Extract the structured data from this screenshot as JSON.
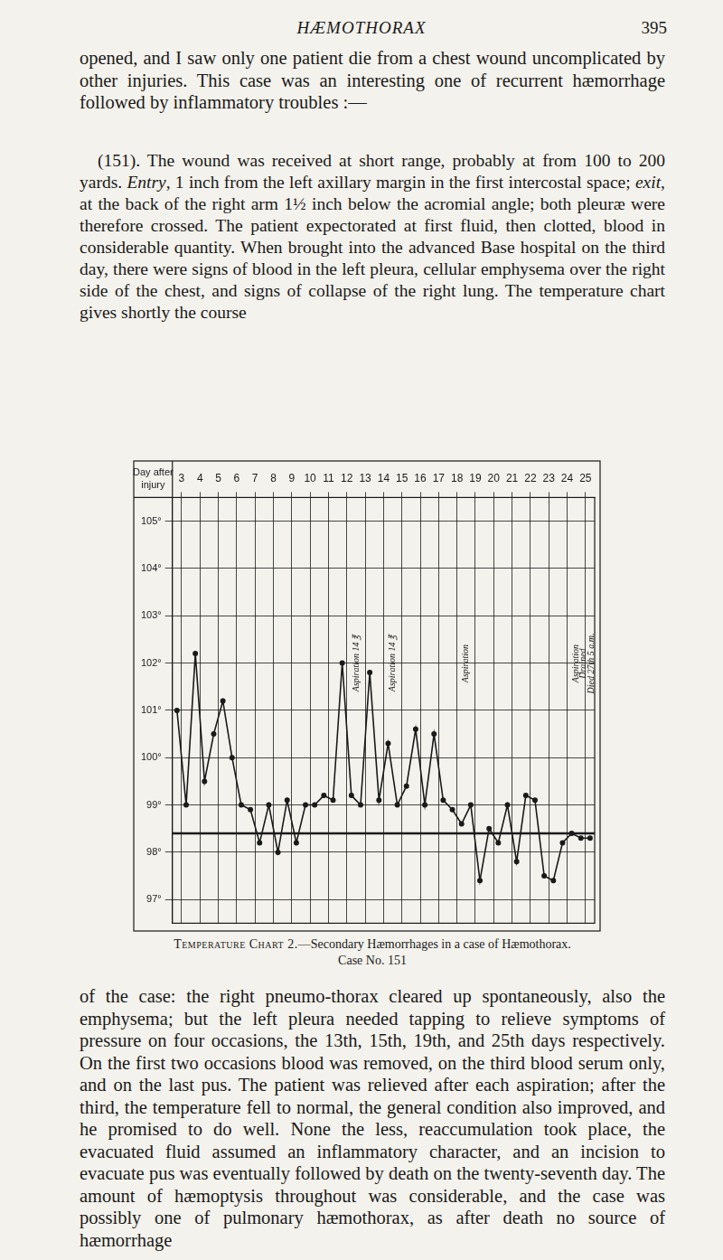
{
  "page": {
    "header": {
      "title": "HÆMOTHORAX",
      "page_number": "395"
    },
    "paragraphs": [
      {
        "runs": [
          {
            "text": "opened, and I saw only one patient die from a chest wound uncomplicated by other injuries. This case was an interesting one of recurrent hæmorrhage followed by inflammatory troubles :—",
            "italic": false
          }
        ]
      },
      {
        "runs": [
          {
            "text": "(151). The wound was received at short range, probably at from 100 to 200 yards. ",
            "italic": false
          },
          {
            "text": "Entry",
            "italic": true
          },
          {
            "text": ", 1 inch from the left axillary margin in the first intercostal space; ",
            "italic": false
          },
          {
            "text": "exit",
            "italic": true
          },
          {
            "text": ", at the back of the right arm 1½ inch below the acromial angle; both pleuræ were therefore crossed. The patient expectorated at first fluid, then clotted, blood in considerable quantity. When brought into the advanced Base hospital on the third day, there were signs of blood in the left pleura, cellular emphysema over the right side of the chest, and signs of collapse of the right lung. The temperature chart gives shortly the course",
            "italic": false
          }
        ]
      },
      {
        "runs": [
          {
            "text": "of the case: the right pneumo-thorax cleared up spontaneously, also the emphysema; but the left pleura needed tapping to relieve symptoms of pressure on four occasions, the 13th, 15th, 19th, and 25th days respectively. On the first two occasions blood was removed, on the third blood serum only, and on the last pus. The patient was relieved after each aspiration; after the third, the temperature fell to normal, the general condition also improved, and he promised to do well. None the less, reaccumulation took place, the evacuated fluid assumed an inflammatory character, and an incision to evacuate pus was eventually followed by death on the twenty-seventh day. The amount of hæmoptysis throughout was considerable, and the case was possibly one of pulmonary hæmothorax, as after death no source of hæmorrhage",
            "italic": false
          }
        ]
      }
    ],
    "caption": {
      "label": "Temperature Chart 2.",
      "text": "—Secondary Hæmorrhages in a case of Hæmothorax.",
      "case": "Case No. 151"
    }
  },
  "chart_data": {
    "type": "line",
    "xlabel": "Day after injury",
    "x": [
      2.75,
      3.25,
      3.75,
      4.25,
      4.75,
      5.25,
      5.75,
      6.25,
      6.75,
      7.25,
      7.75,
      8.25,
      8.75,
      9.25,
      9.75,
      10.25,
      10.75,
      11.25,
      11.75,
      12.25,
      12.75,
      13.25,
      13.75,
      14.25,
      14.75,
      15.25,
      15.75,
      16.25,
      16.75,
      17.25,
      17.75,
      18.25,
      18.75,
      19.25,
      19.75,
      20.25,
      20.75,
      21.25,
      21.75,
      22.25,
      22.75,
      23.25,
      23.75,
      24.25,
      24.75,
      25.25
    ],
    "values": [
      101.0,
      99.0,
      102.2,
      99.5,
      100.5,
      101.2,
      100.0,
      99.0,
      98.9,
      98.2,
      99.0,
      98.0,
      99.1,
      98.2,
      99.0,
      99.0,
      99.2,
      99.1,
      102.0,
      99.2,
      99.0,
      101.8,
      99.1,
      100.3,
      99.0,
      99.4,
      100.6,
      99.0,
      100.5,
      99.1,
      98.9,
      98.6,
      99.0,
      97.4,
      98.5,
      98.2,
      99.0,
      97.8,
      99.2,
      99.1,
      97.5,
      97.4,
      98.2,
      98.4,
      98.3,
      98.3
    ],
    "color": "#1a1a1a",
    "marker": "circle",
    "line_style": "solid",
    "xlim": [
      2.5,
      25.5
    ],
    "xticks": [
      3,
      4,
      5,
      6,
      7,
      8,
      9,
      10,
      11,
      12,
      13,
      14,
      15,
      16,
      17,
      18,
      19,
      20,
      21,
      22,
      23,
      24,
      25
    ],
    "ylim": [
      96.5,
      105.5
    ],
    "yticks": [
      {
        "value": 97,
        "label": "97°"
      },
      {
        "value": 98,
        "label": "98°"
      },
      {
        "value": 99,
        "label": "99°"
      },
      {
        "value": 100,
        "label": "100°"
      },
      {
        "value": 101,
        "label": "101°"
      },
      {
        "value": 102,
        "label": "102°"
      },
      {
        "value": 103,
        "label": "103°"
      },
      {
        "value": 104,
        "label": "104°"
      },
      {
        "value": 105,
        "label": "105°"
      }
    ],
    "reference_line": 98.4,
    "annotations": [
      {
        "x": 12.5,
        "text": "Aspiration 14 ℥"
      },
      {
        "x": 14.5,
        "text": "Aspiration 14 ℥"
      },
      {
        "x": 18.5,
        "text": "Aspiration"
      },
      {
        "x": 24.5,
        "text": "Aspiration"
      },
      {
        "x": 24.9,
        "text": "Drained"
      },
      {
        "x": 25.3,
        "text": "Died 27th 5 a.m."
      }
    ],
    "grid": true,
    "legend": "none"
  }
}
